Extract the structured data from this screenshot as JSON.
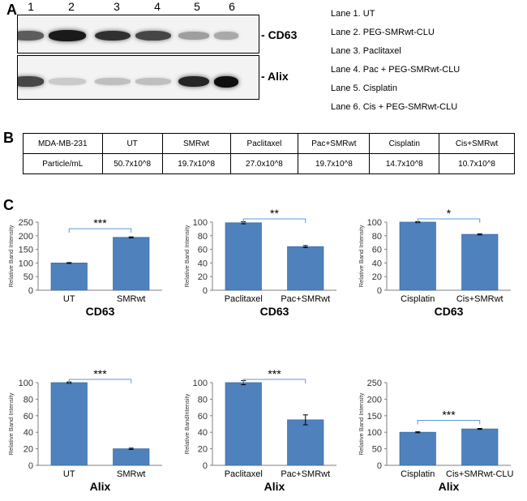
{
  "panels": {
    "a": "A",
    "b": "B",
    "c": "C"
  },
  "blot": {
    "lane_numbers": [
      "1",
      "2",
      "3",
      "4",
      "5",
      "6"
    ],
    "rows": [
      {
        "label": "CD63",
        "band_intensity": [
          0.65,
          0.95,
          0.85,
          0.75,
          0.35,
          0.3
        ]
      },
      {
        "label": "Alix",
        "band_intensity": [
          0.75,
          0.15,
          0.2,
          0.2,
          0.9,
          1.0
        ]
      }
    ],
    "legend": [
      "Lane 1. UT",
      "Lane 2. PEG-SMRwt-CLU",
      "Lane 3. Paclitaxel",
      "Lane 4. Pac + PEG-SMRwt-CLU",
      "Lane 5. Cisplatin",
      "Lane 6. Cis + PEG-SMRwt-CLU"
    ]
  },
  "table": {
    "header": [
      "MDA-MB-231",
      "UT",
      "SMRwt",
      "Paclitaxel",
      "Pac+SMRwt",
      "Cisplatin",
      "Cis+SMRwt"
    ],
    "row": [
      "Particle/mL",
      "50.7x10^8",
      "19.7x10^8",
      "27.0x10^8",
      "19.7x10^8",
      "14.7x10^8",
      "10.7x10^8"
    ]
  },
  "colors": {
    "bar": "#4f81bd",
    "bar_edge": "#3a6ea5",
    "bracket": "#5b9bd5",
    "axis": "#7f7f7f"
  },
  "chart_data": [
    {
      "type": "bar",
      "title": "CD63",
      "ylabel": "Relative Band Intensity",
      "categories": [
        "UT",
        "SMRwt"
      ],
      "values": [
        100,
        194
      ],
      "errors": [
        1.5,
        2
      ],
      "ylim": [
        0,
        250
      ],
      "yticks": [
        "0",
        "50",
        "100",
        "150",
        "200",
        "250"
      ],
      "significance": "***"
    },
    {
      "type": "bar",
      "title": "CD63",
      "ylabel": "Relative Band Intensity",
      "categories": [
        "Paclitaxel",
        "Pac+SMRwt"
      ],
      "values": [
        99,
        64
      ],
      "errors": [
        1.5,
        1.5
      ],
      "ylim": [
        0,
        100
      ],
      "yticks": [
        "0",
        "20",
        "40",
        "60",
        "80",
        "100"
      ],
      "significance": "**"
    },
    {
      "type": "bar",
      "title": "CD63",
      "ylabel": "Relative Band Intensity",
      "categories": [
        "Cisplatin",
        "Cis+SMRwt"
      ],
      "values": [
        100,
        82
      ],
      "errors": [
        0.8,
        0.8
      ],
      "ylim": [
        0,
        100
      ],
      "yticks": [
        "0",
        "20",
        "40",
        "60",
        "80",
        "100"
      ],
      "significance": "*"
    },
    {
      "type": "bar",
      "title": "Alix",
      "ylabel": "Relative Band Intensity",
      "categories": [
        "UT",
        "SMRwt"
      ],
      "values": [
        100,
        20
      ],
      "errors": [
        0.8,
        0.8
      ],
      "ylim": [
        0,
        100
      ],
      "yticks": [
        "0",
        "20",
        "40",
        "60",
        "80",
        "100"
      ],
      "significance": "***"
    },
    {
      "type": "bar",
      "title": "Alix",
      "ylabel": "Relative BandIntensity",
      "categories": [
        "Paclitaxel",
        "Pac+SMRwt"
      ],
      "values": [
        100,
        55
      ],
      "errors": [
        2.5,
        6
      ],
      "ylim": [
        0,
        100
      ],
      "yticks": [
        "0",
        "20",
        "40",
        "60",
        "80",
        "100"
      ],
      "significance": "***"
    },
    {
      "type": "bar",
      "title": "Alix",
      "ylabel": "Relative Band Intensity",
      "categories": [
        "Cisplatin",
        "Cis+SMRwt-CLU"
      ],
      "values": [
        100,
        110
      ],
      "errors": [
        1.5,
        1.5
      ],
      "ylim": [
        0,
        250
      ],
      "yticks": [
        "0",
        "50",
        "100",
        "150",
        "200",
        "250"
      ],
      "significance": "***"
    }
  ]
}
